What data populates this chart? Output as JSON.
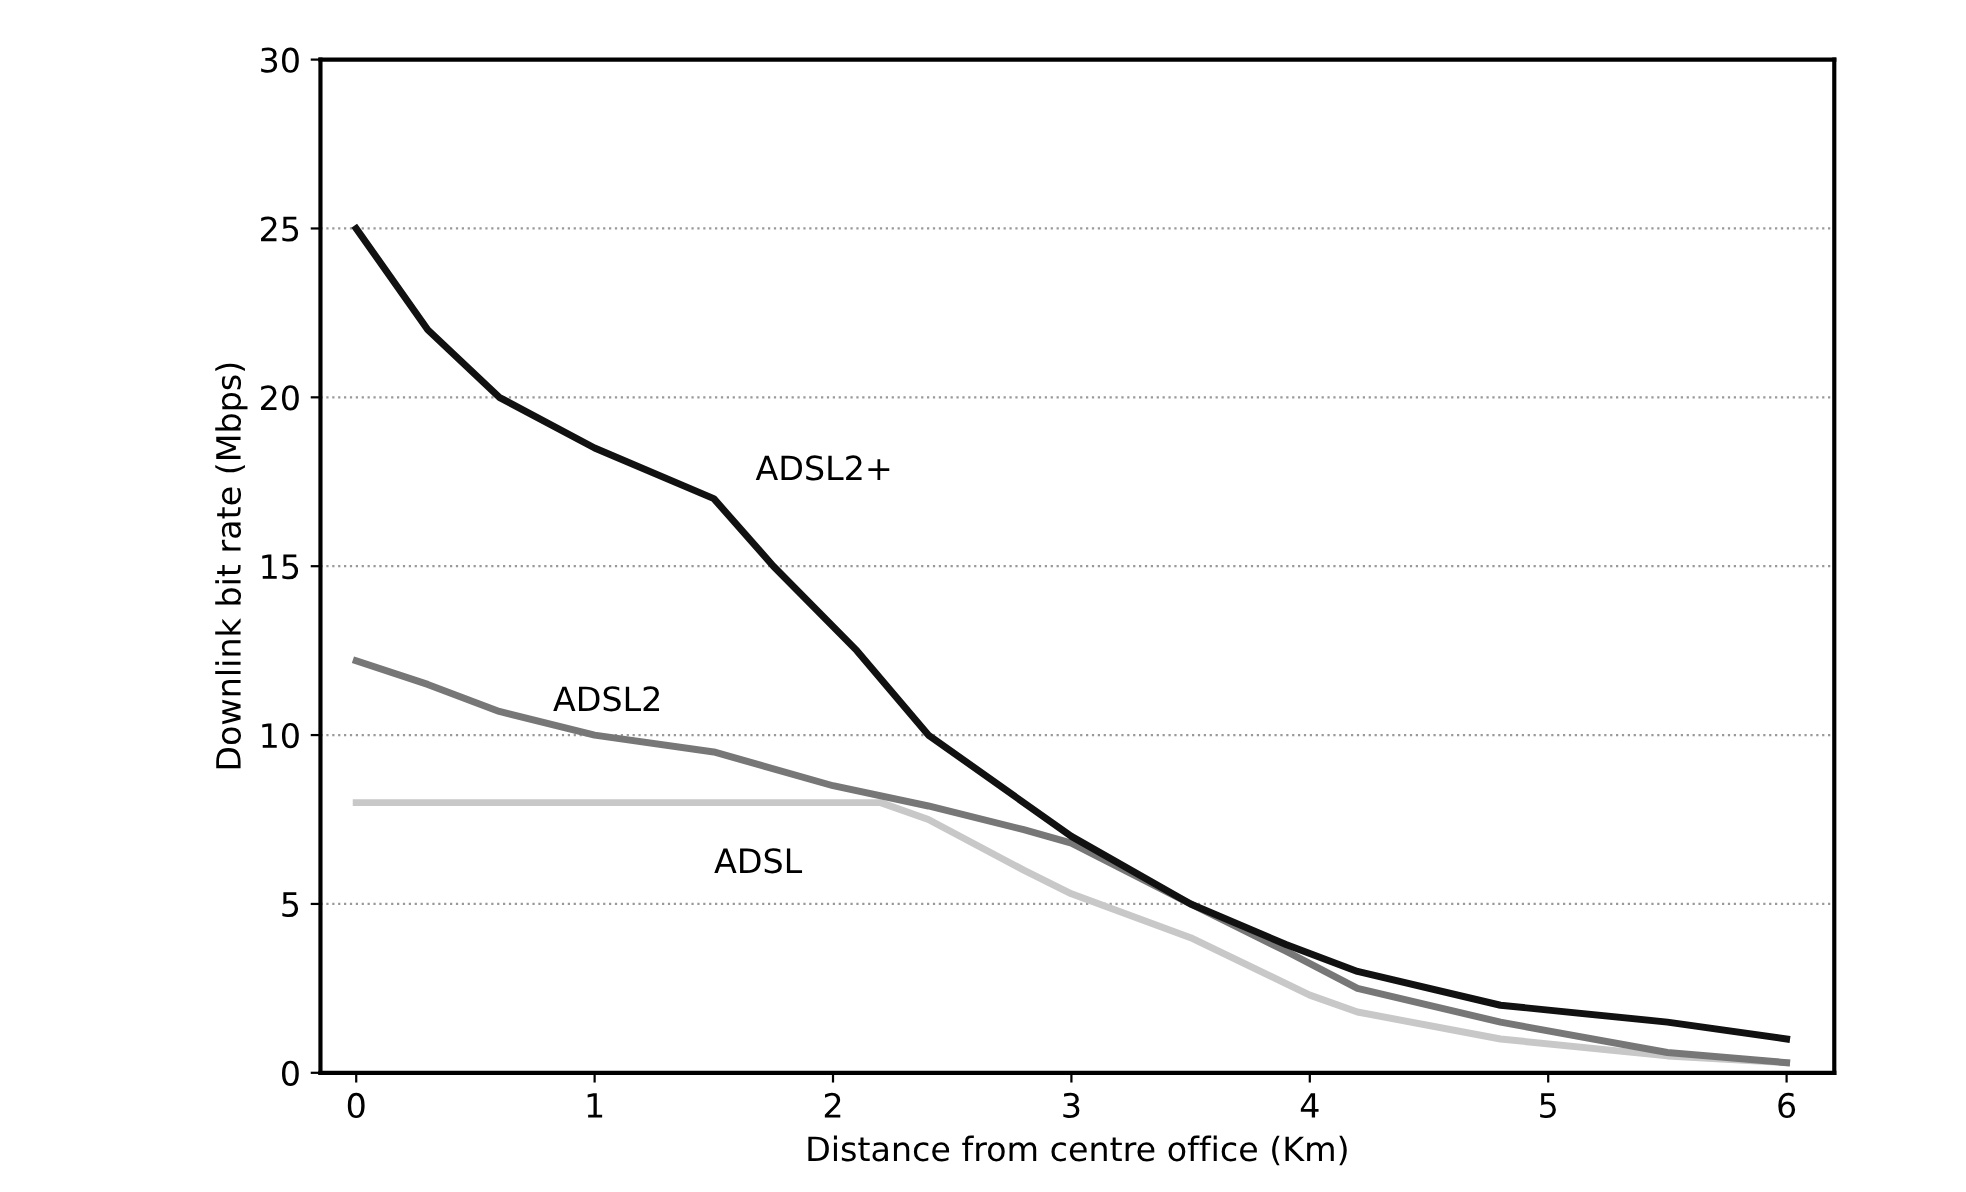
{
  "chart_data": {
    "type": "line",
    "xlabel": "Distance from centre office (Km)",
    "ylabel": "Downlink bit rate (Mbps)",
    "xlim": [
      -0.15,
      6.2
    ],
    "ylim": [
      0,
      30
    ],
    "xticks": [
      0,
      1,
      2,
      3,
      4,
      5,
      6
    ],
    "yticks": [
      0,
      5,
      10,
      15,
      20,
      25,
      30
    ],
    "grid": "y",
    "marker": "none",
    "line_style": "solid",
    "series": [
      {
        "name": "ADSL",
        "color": "#c8c8c8",
        "x": [
          0,
          2.2,
          2.4,
          2.8,
          3,
          3.5,
          4,
          4.2,
          4.8,
          5.5,
          6
        ],
        "values": [
          8,
          8,
          7.5,
          6,
          5.3,
          4,
          2.3,
          1.8,
          1,
          0.5,
          0.3
        ]
      },
      {
        "name": "ADSL2",
        "color": "#777777",
        "x": [
          0,
          0.3,
          0.6,
          1,
          1.5,
          2,
          2.4,
          2.8,
          3,
          3.5,
          3.9,
          4.2,
          4.8,
          5.5,
          6
        ],
        "values": [
          12.2,
          11.5,
          10.7,
          10,
          9.5,
          8.5,
          7.9,
          7.2,
          6.8,
          5,
          3.6,
          2.5,
          1.5,
          0.6,
          0.3
        ]
      },
      {
        "name": "ADSL2+",
        "color": "#111111",
        "x": [
          0,
          0.3,
          0.6,
          1,
          1.5,
          1.75,
          2.1,
          2.4,
          3,
          3.5,
          3.9,
          4.2,
          4.8,
          5.5,
          6
        ],
        "values": [
          25,
          22,
          20,
          18.5,
          17,
          15,
          12.5,
          10,
          7,
          5,
          3.8,
          3,
          2,
          1.5,
          1
        ]
      }
    ]
  }
}
